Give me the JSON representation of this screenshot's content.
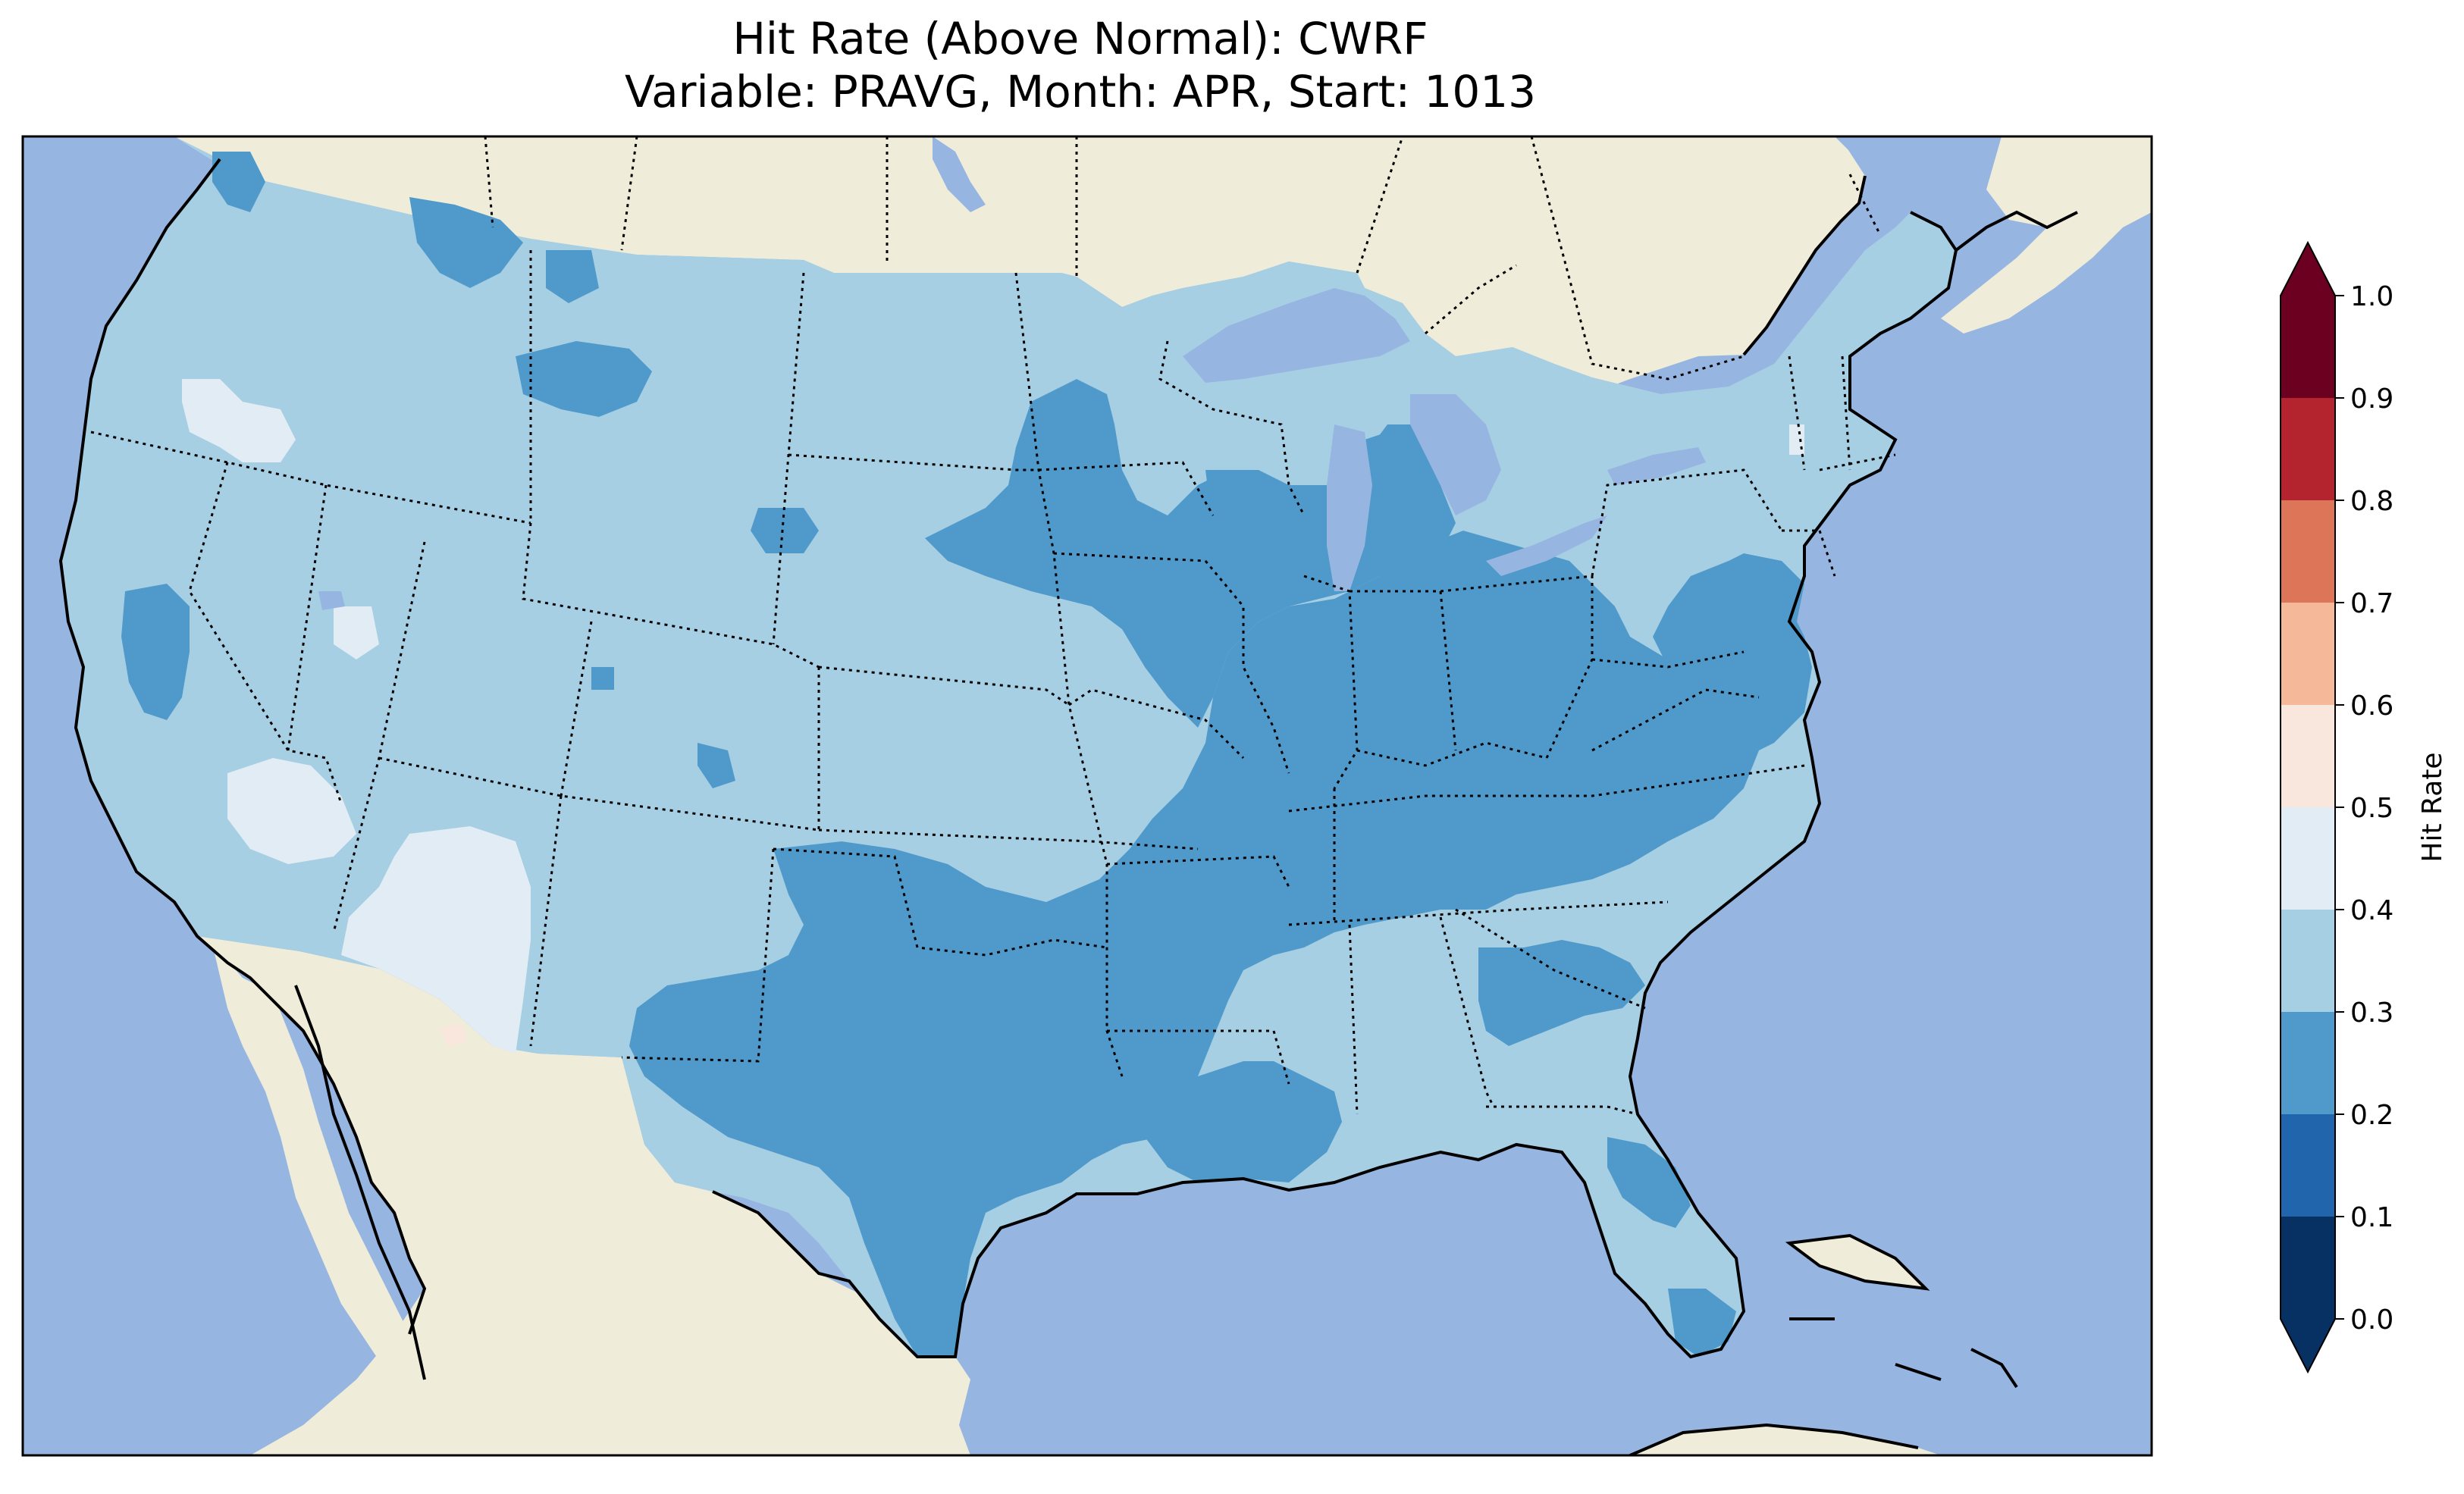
{
  "title": {
    "line1": "Hit Rate (Above Normal): CWRF",
    "line2": "Variable: PRAVG, Month: APR, Start: 1013"
  },
  "colors": {
    "ocean": "#97b5e1",
    "land": "#efedda",
    "lakes": "#97b5e1",
    "bin_0_1": "#073063",
    "bin_1_2": "#2166ac",
    "bin_2_3": "#4f9acb",
    "bin_3_4": "#a7cfe4",
    "bin_4_5": "#e2ecf4",
    "bin_5_6": "#f9e7de",
    "bin_6_7": "#f5b899",
    "bin_7_8": "#dd7658",
    "bin_8_9": "#b3242f",
    "bin_9_10": "#6b0020"
  },
  "colorbar": {
    "label": "Hit Rate",
    "ticks": [
      "0.0",
      "0.1",
      "0.2",
      "0.3",
      "0.4",
      "0.5",
      "0.6",
      "0.7",
      "0.8",
      "0.9",
      "1.0"
    ],
    "range": [
      0.0,
      1.0
    ],
    "extend": "both"
  },
  "map": {
    "region": "Contiguous United States",
    "dominant_value_range": [
      0.3,
      0.4
    ],
    "secondary_value_range": [
      0.2,
      0.3
    ],
    "isolated_value_range": [
      0.4,
      0.5
    ],
    "rare_value_range": [
      0.5,
      0.6
    ]
  }
}
